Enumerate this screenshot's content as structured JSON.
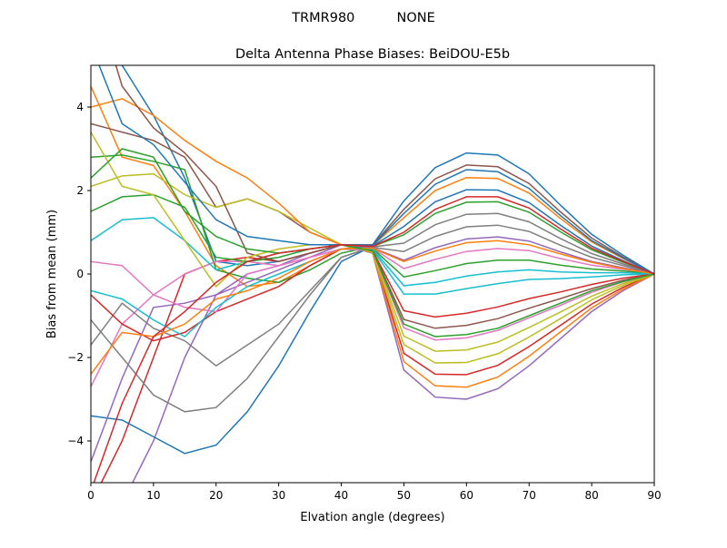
{
  "chart_data": {
    "type": "line",
    "suptitle": "TRMR980          NONE",
    "title": "Delta Antenna Phase Biases: BeiDOU-E5b",
    "xlabel": "Elvation angle (degrees)",
    "ylabel": "Bias from mean (mm)",
    "xlim": [
      0,
      90
    ],
    "ylim": [
      -5,
      5
    ],
    "xticks": [
      0,
      10,
      20,
      30,
      40,
      50,
      60,
      70,
      80,
      90
    ],
    "yticks": [
      -4,
      -2,
      0,
      2,
      4
    ],
    "grid": false,
    "legend": "none",
    "colors": [
      "#1f77b4",
      "#ff7f0e",
      "#2ca02c",
      "#d62728",
      "#9467bd",
      "#8c564b",
      "#e377c2",
      "#7f7f7f",
      "#bcbd22",
      "#17becf"
    ],
    "x": [
      0,
      5,
      10,
      15,
      20,
      25,
      30,
      35,
      40,
      45,
      50,
      55,
      60,
      65,
      70,
      75,
      80,
      85,
      90
    ],
    "series": [
      {
        "values": [
          6.5,
          5,
          3.8,
          2.3,
          0.3,
          0.2,
          0.3,
          0.5,
          0.7,
          0.7,
          1.75,
          2.55,
          2.9,
          2.85,
          2.4,
          1.65,
          0.95,
          0.45,
          0
        ]
      },
      {
        "values": [
          4.5,
          2.8,
          2.6,
          1.5,
          0.2,
          -0.3,
          -0.2,
          0.2,
          0.6,
          0.68,
          1.35,
          2.0,
          2.31,
          2.29,
          1.94,
          1.33,
          0.77,
          0.37,
          0
        ]
      },
      {
        "values": [
          2.8,
          2.85,
          2.7,
          2.5,
          0.1,
          -0.1,
          -0.2,
          0.1,
          0.5,
          0.66,
          0.94,
          1.45,
          1.72,
          1.73,
          1.48,
          1.01,
          0.58,
          0.28,
          0
        ]
      },
      {
        "values": [
          -5.5,
          -4,
          -2,
          0,
          0.3,
          0.4,
          0.3,
          0.5,
          0.7,
          0.52,
          -1.9,
          -2.4,
          -2.41,
          -2.19,
          -1.74,
          -1.23,
          -0.72,
          -0.32,
          0
        ]
      },
      {
        "values": [
          -6,
          -5.5,
          -4,
          -2,
          -0.5,
          0,
          0.2,
          0.5,
          0.7,
          0.5,
          -2.3,
          -2.95,
          -3.0,
          -2.75,
          -2.2,
          -1.55,
          -0.9,
          -0.4,
          0
        ]
      },
      {
        "values": [
          3.6,
          3.4,
          3.2,
          2.8,
          1.6,
          1.8,
          1.5,
          1.0,
          0.7,
          0.56,
          -1.09,
          -1.3,
          -1.23,
          -1.07,
          -0.82,
          -0.59,
          -0.35,
          -0.15,
          0
        ]
      },
      {
        "values": [
          -2.7,
          -1.2,
          -0.5,
          0,
          0.3,
          0.3,
          0.2,
          0.4,
          0.6,
          0.62,
          0.13,
          0.35,
          0.54,
          0.61,
          0.56,
          0.37,
          0.21,
          0.11,
          0
        ]
      },
      {
        "values": [
          -1.7,
          -0.7,
          -1.3,
          -1.6,
          -2.2,
          -1.7,
          -1.2,
          -0.4,
          0.4,
          0.64,
          0.54,
          0.9,
          1.13,
          1.17,
          1.02,
          0.69,
          0.4,
          0.2,
          0
        ]
      },
      {
        "values": [
          2.1,
          2.35,
          2.4,
          1.9,
          1.6,
          1.8,
          1.5,
          1.1,
          0.7,
          0.54,
          -1.49,
          -1.85,
          -1.82,
          -1.63,
          -1.28,
          -0.91,
          -0.53,
          -0.23,
          0
        ]
      },
      {
        "values": [
          0.8,
          1.3,
          1.35,
          0.8,
          0.1,
          0.3,
          0.5,
          0.6,
          0.7,
          0.59,
          -0.48,
          -0.48,
          -0.35,
          -0.23,
          -0.13,
          -0.11,
          -0.07,
          -0.02,
          0
        ]
      },
      {
        "values": [
          -3.4,
          -3.5,
          -3.9,
          -4.3,
          -4.1,
          -3.3,
          -2.2,
          -0.9,
          0.3,
          0.67,
          1.14,
          1.73,
          2.02,
          2.01,
          1.71,
          1.17,
          0.67,
          0.32,
          0
        ]
      },
      {
        "values": [
          4,
          4.2,
          3.8,
          3.2,
          2.7,
          2.3,
          1.7,
          1.0,
          0.7,
          0.51,
          -2.1,
          -2.68,
          -2.71,
          -2.47,
          -1.97,
          -1.39,
          -0.81,
          -0.36,
          0
        ]
      },
      {
        "values": [
          1.5,
          1.85,
          1.9,
          1.6,
          0.4,
          0.3,
          0.4,
          0.6,
          0.7,
          0.61,
          -0.07,
          0.08,
          0.25,
          0.33,
          0.33,
          0.21,
          0.12,
          0.07,
          0
        ]
      },
      {
        "values": [
          -0.5,
          -1.2,
          -1.6,
          -1.4,
          -0.9,
          -0.6,
          -0.3,
          0.2,
          0.6,
          0.57,
          -0.88,
          -1.03,
          -0.94,
          -0.79,
          -0.59,
          -0.43,
          -0.25,
          -0.1,
          0
        ]
      },
      {
        "values": [
          -4.5,
          -2.5,
          -0.8,
          -0.7,
          -0.5,
          -0.2,
          0.1,
          0.4,
          0.7,
          0.63,
          0.33,
          0.63,
          0.84,
          0.89,
          0.79,
          0.53,
          0.3,
          0.15,
          0
        ]
      },
      {
        "values": [
          7,
          4.5,
          3.5,
          2.9,
          2.1,
          0.5,
          0.3,
          0.5,
          0.7,
          0.69,
          1.55,
          2.28,
          2.61,
          2.57,
          2.17,
          1.49,
          0.86,
          0.41,
          0
        ]
      },
      {
        "values": [
          0.3,
          0.2,
          -0.5,
          -0.8,
          -0.9,
          0,
          0.2,
          0.4,
          0.6,
          0.55,
          -1.29,
          -1.58,
          -1.53,
          -1.35,
          -1.05,
          -0.75,
          -0.44,
          -0.19,
          0
        ]
      },
      {
        "values": [
          -1.1,
          -2,
          -2.9,
          -3.3,
          -3.2,
          -2.5,
          -1.5,
          -0.5,
          0.4,
          0.65,
          0.74,
          1.18,
          1.43,
          1.45,
          1.25,
          0.85,
          0.49,
          0.24,
          0
        ]
      },
      {
        "values": [
          3.4,
          2.1,
          1.9,
          0.8,
          -0.3,
          0.4,
          0.6,
          0.7,
          0.7,
          0.53,
          -1.69,
          -2.13,
          -2.12,
          -1.91,
          -1.51,
          -1.07,
          -0.62,
          -0.27,
          0
        ]
      },
      {
        "values": [
          -0.4,
          -0.6,
          -1.1,
          -1.5,
          -0.8,
          -0.3,
          0,
          0.3,
          0.6,
          0.6,
          -0.28,
          -0.2,
          -0.05,
          0.05,
          0.1,
          0.05,
          0.03,
          0.03,
          0
        ]
      },
      {
        "values": [
          5.5,
          3.6,
          3.1,
          2.2,
          1.3,
          0.9,
          0.8,
          0.7,
          0.7,
          0.68,
          1.45,
          2.15,
          2.5,
          2.45,
          2.05,
          1.4,
          0.8,
          0.39,
          0
        ]
      },
      {
        "values": [
          -2.4,
          -1.4,
          -1.5,
          -1.2,
          -0.6,
          -0.4,
          -0.1,
          0.3,
          0.6,
          0.62,
          0.3,
          0.55,
          0.75,
          0.8,
          0.7,
          0.48,
          0.28,
          0.13,
          0
        ]
      },
      {
        "values": [
          2.3,
          3.0,
          2.8,
          1.5,
          0.9,
          0.6,
          0.5,
          0.6,
          0.7,
          0.55,
          -1.2,
          -1.5,
          -1.45,
          -1.3,
          -1.0,
          -0.7,
          -0.4,
          -0.18,
          0
        ]
      },
      {
        "values": [
          -5.2,
          -3.1,
          -1.5,
          -0.9,
          -0.2,
          0.3,
          0.5,
          0.6,
          0.7,
          0.66,
          1.0,
          1.55,
          1.85,
          1.85,
          1.58,
          1.08,
          0.62,
          0.3,
          0
        ]
      }
    ]
  }
}
